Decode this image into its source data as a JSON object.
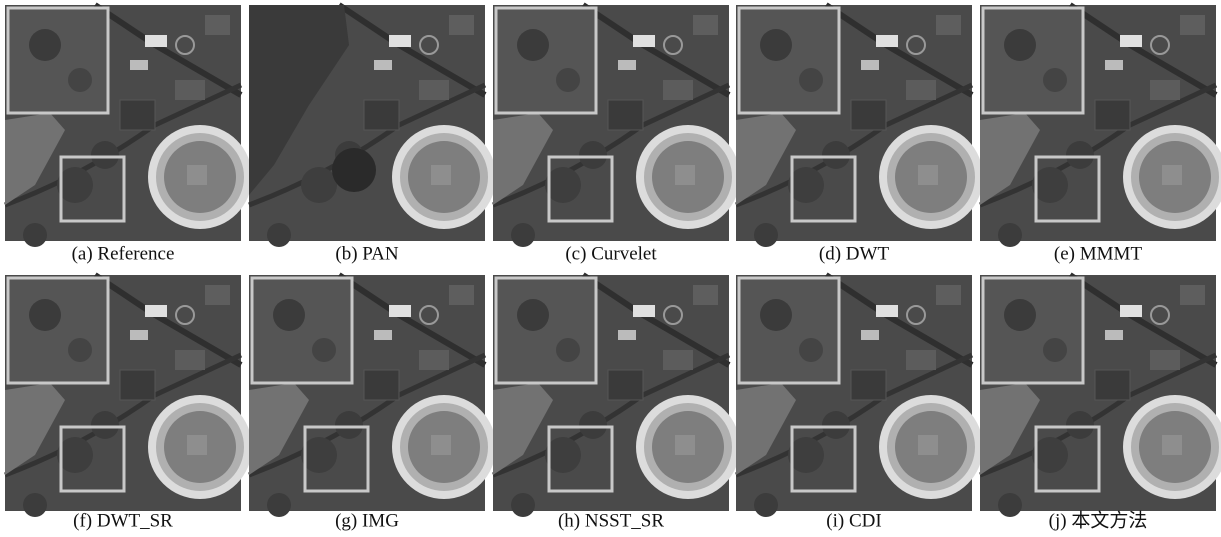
{
  "panels": [
    {
      "caption": "(a) Reference"
    },
    {
      "caption": "(b) PAN"
    },
    {
      "caption": "(c) Curvelet"
    },
    {
      "caption": "(d) DWT"
    },
    {
      "caption": "(e) MMMT"
    },
    {
      "caption": "(f) DWT_SR"
    },
    {
      "caption": "(g) IMG"
    },
    {
      "caption": "(h) NSST_SR"
    },
    {
      "caption": "(i) CDI"
    },
    {
      "caption": "(j) 本文方法"
    }
  ]
}
